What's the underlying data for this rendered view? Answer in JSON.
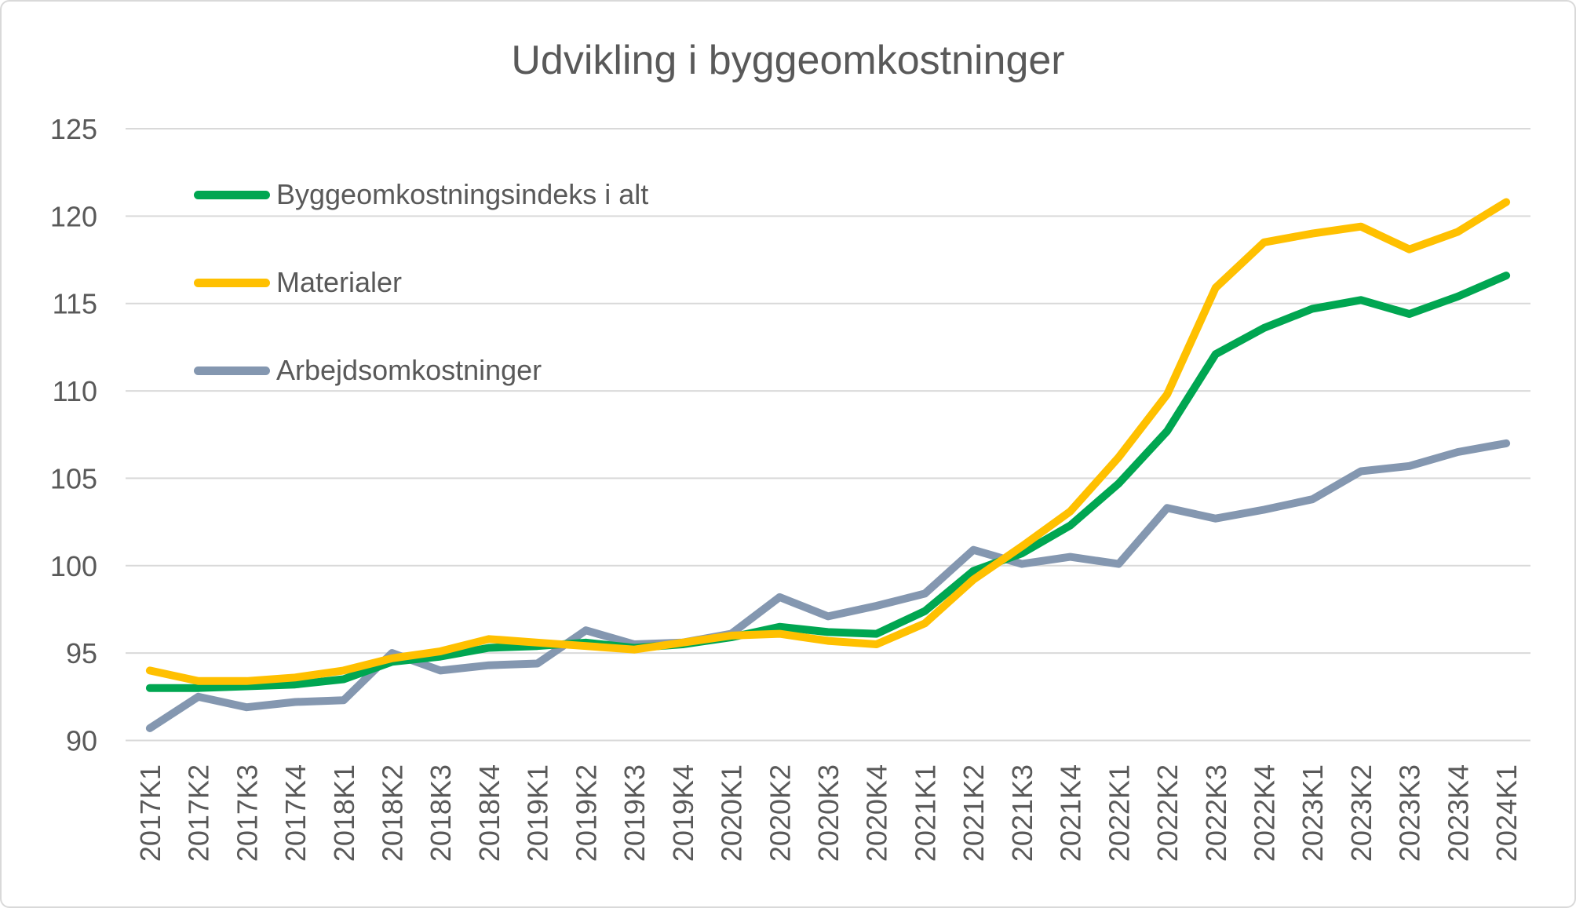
{
  "chart_data": {
    "type": "line",
    "title": "Udvikling i byggeomkostninger",
    "categories": [
      "2017K1",
      "2017K2",
      "2017K3",
      "2017K4",
      "2018K1",
      "2018K2",
      "2018K3",
      "2018K4",
      "2019K1",
      "2019K2",
      "2019K3",
      "2019K4",
      "2020K1",
      "2020K2",
      "2020K3",
      "2020K4",
      "2021K1",
      "2021K2",
      "2021K3",
      "2021K4",
      "2022K1",
      "2022K2",
      "2022K3",
      "2022K4",
      "2023K1",
      "2023K2",
      "2023K3",
      "2023K4",
      "2024K1"
    ],
    "series": [
      {
        "name": "Byggeomkostningsindeks i alt",
        "color": "#00A651",
        "values": [
          93.0,
          93.0,
          93.1,
          93.2,
          93.5,
          94.5,
          94.8,
          95.3,
          95.4,
          95.6,
          95.3,
          95.5,
          95.9,
          96.5,
          96.2,
          96.1,
          97.4,
          99.7,
          100.7,
          102.3,
          104.7,
          107.7,
          112.1,
          113.6,
          114.7,
          115.2,
          114.4,
          115.4,
          116.6
        ]
      },
      {
        "name": "Materialer",
        "color": "#FFC000",
        "values": [
          94.0,
          93.4,
          93.4,
          93.6,
          94.0,
          94.7,
          95.1,
          95.8,
          95.6,
          95.4,
          95.2,
          95.6,
          96.0,
          96.1,
          95.7,
          95.5,
          96.7,
          99.2,
          101.1,
          103.1,
          106.2,
          109.8,
          115.9,
          118.5,
          119.0,
          119.4,
          118.1,
          119.1,
          120.8
        ]
      },
      {
        "name": "Arbejdsomkostninger",
        "color": "#8497B0",
        "values": [
          90.7,
          92.5,
          91.9,
          92.2,
          92.3,
          95.0,
          94.0,
          94.3,
          94.4,
          96.3,
          95.5,
          95.6,
          96.1,
          98.2,
          97.1,
          97.7,
          98.4,
          100.9,
          100.1,
          100.5,
          100.1,
          103.3,
          102.7,
          103.2,
          103.8,
          105.4,
          105.7,
          106.5,
          107.0
        ]
      }
    ],
    "ylim": [
      90,
      125
    ],
    "yticks": [
      90,
      95,
      100,
      105,
      110,
      115,
      120,
      125
    ],
    "grid": "horizontal",
    "legend_position": "top-left-inside",
    "axis_text_color": "#595959",
    "gridline_color": "#D9D9D9",
    "background": "#FFFFFF"
  }
}
